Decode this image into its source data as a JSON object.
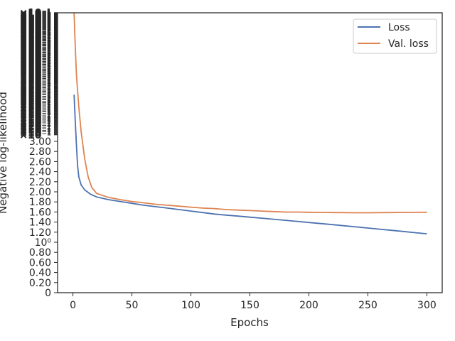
{
  "chart_data": {
    "type": "line",
    "title": "",
    "xlabel": "Epochs",
    "ylabel": "Negative log-likelihood",
    "x_ticks": [
      0,
      50,
      100,
      150,
      200,
      250,
      300
    ],
    "xlim": [
      -13,
      313
    ],
    "y_scale": "overlapping-linear-and-log",
    "y_linear_ticks": [
      "0",
      "0.20",
      "0.40",
      "0.60",
      "0.80",
      "1.00",
      "1.20",
      "1.40",
      "1.60",
      "1.80",
      "2.00",
      "2.20",
      "2.40",
      "2.60",
      "2.80",
      "3.00"
    ],
    "y_log_major_label": "10⁰",
    "legend": {
      "placement": "top-right",
      "entries": [
        "Loss",
        "Val. loss"
      ]
    },
    "grid": false,
    "series": [
      {
        "name": "Loss",
        "color": "#4c72b0",
        "x": [
          1,
          2,
          3,
          4,
          5,
          7,
          10,
          15,
          20,
          30,
          40,
          50,
          60,
          70,
          80,
          90,
          100,
          110,
          120,
          130,
          140,
          150,
          160,
          170,
          180,
          190,
          200,
          210,
          220,
          230,
          240,
          250,
          260,
          270,
          280,
          290,
          300
        ],
        "values": [
          3.2,
          2.6,
          2.15,
          1.85,
          1.7,
          1.6,
          1.54,
          1.49,
          1.46,
          1.43,
          1.41,
          1.39,
          1.37,
          1.355,
          1.34,
          1.325,
          1.31,
          1.295,
          1.28,
          1.27,
          1.26,
          1.25,
          1.24,
          1.23,
          1.22,
          1.21,
          1.2,
          1.19,
          1.18,
          1.17,
          1.16,
          1.15,
          1.14,
          1.13,
          1.12,
          1.11,
          1.1
        ]
      },
      {
        "name": "Val. loss",
        "color": "#dd8452",
        "x": [
          1,
          2,
          3,
          5,
          7,
          10,
          13,
          16,
          20,
          30,
          40,
          50,
          60,
          70,
          80,
          90,
          100,
          110,
          120,
          130,
          140,
          150,
          160,
          170,
          180,
          190,
          200,
          210,
          220,
          230,
          240,
          250,
          260,
          270,
          280,
          290,
          300
        ],
        "values": [
          6.2,
          4.6,
          3.7,
          2.9,
          2.4,
          1.95,
          1.7,
          1.57,
          1.5,
          1.455,
          1.43,
          1.41,
          1.395,
          1.38,
          1.37,
          1.36,
          1.35,
          1.34,
          1.335,
          1.325,
          1.32,
          1.315,
          1.31,
          1.305,
          1.3,
          1.3,
          1.298,
          1.296,
          1.295,
          1.294,
          1.293,
          1.293,
          1.294,
          1.295,
          1.296,
          1.297,
          1.298
        ]
      }
    ]
  }
}
